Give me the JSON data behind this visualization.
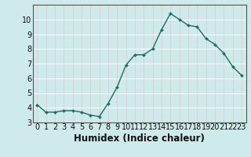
{
  "x": [
    0,
    1,
    2,
    3,
    4,
    5,
    6,
    7,
    8,
    9,
    10,
    11,
    12,
    13,
    14,
    15,
    16,
    17,
    18,
    19,
    20,
    21,
    22,
    23
  ],
  "y": [
    4.2,
    3.7,
    3.7,
    3.8,
    3.8,
    3.7,
    3.5,
    3.4,
    4.3,
    5.4,
    6.9,
    7.6,
    7.6,
    8.0,
    9.3,
    10.4,
    10.0,
    9.6,
    9.5,
    8.7,
    8.3,
    7.7,
    6.8,
    6.2
  ],
  "xlabel": "Humidex (Indice chaleur)",
  "bg_color": "#ceeaea",
  "line_color": "#1a6e62",
  "marker_color": "#1a6e62",
  "grid_color_major": "#f0d8d8",
  "grid_color_minor": "#ffffff",
  "xlim": [
    -0.5,
    23.5
  ],
  "ylim": [
    3.0,
    11.0
  ],
  "yticks": [
    3,
    4,
    5,
    6,
    7,
    8,
    9,
    10
  ],
  "font_size": 7.0,
  "xlabel_fontsize": 8.5
}
